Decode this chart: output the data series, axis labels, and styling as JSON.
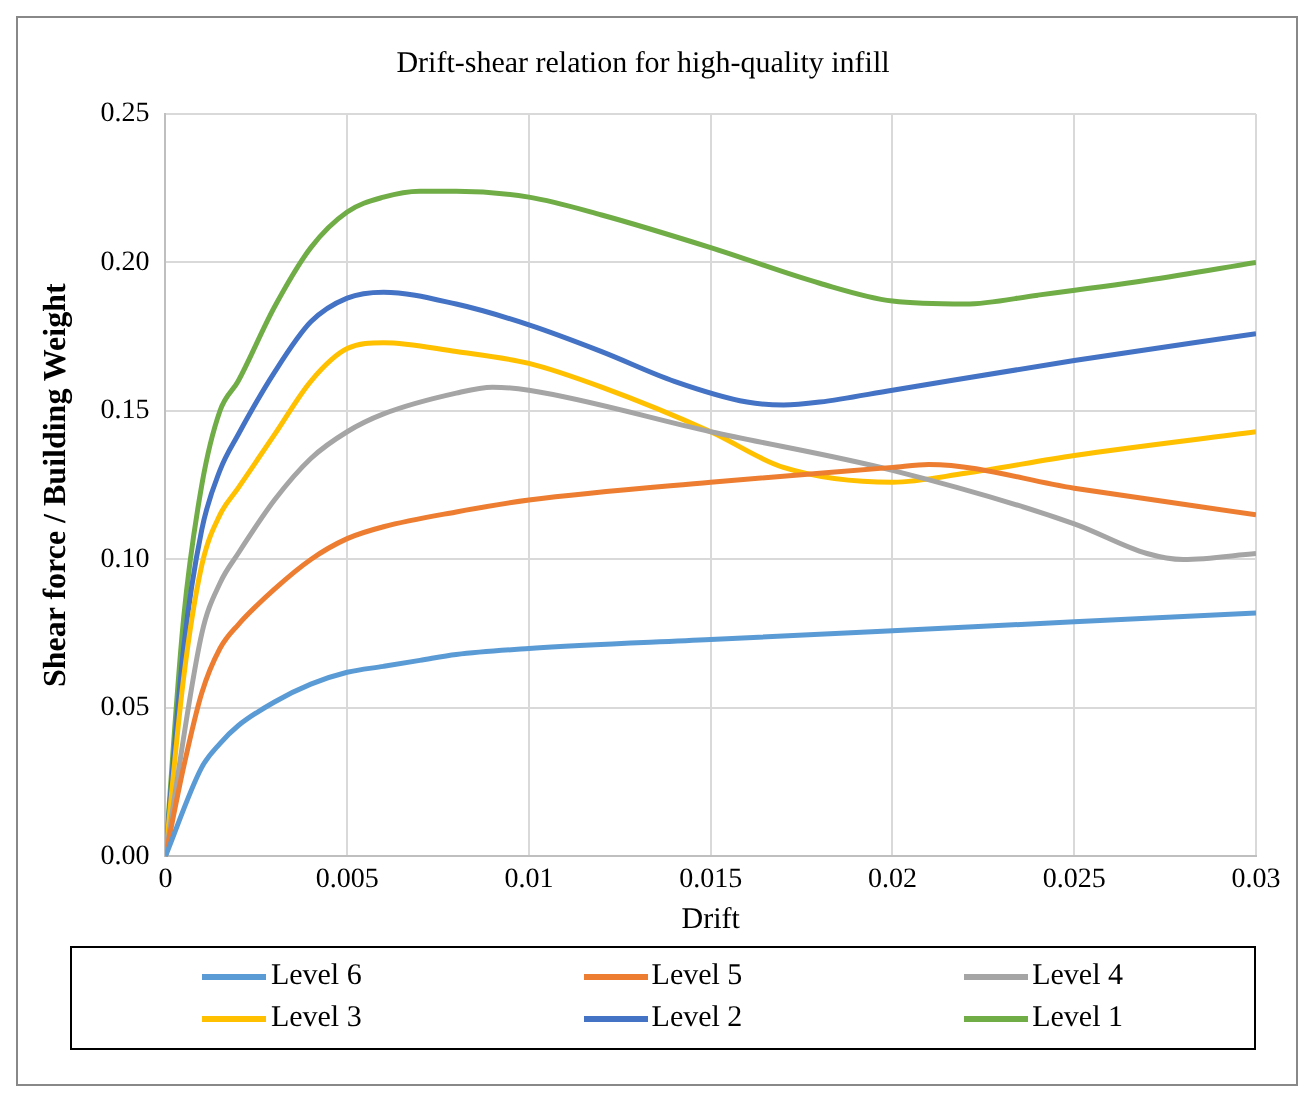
{
  "chart_data": {
    "type": "line",
    "title": "Drift-shear relation for high-quality infill",
    "xlabel": "Drift",
    "ylabel": "Shear force / Building Weight",
    "xlim": [
      0,
      0.03
    ],
    "xticks": [
      0,
      0.005,
      0.01,
      0.015,
      0.02,
      0.025,
      0.03
    ],
    "ylim": [
      0,
      0.25
    ],
    "yticks": [
      {
        "value": 0,
        "label": "0.00"
      },
      {
        "value": 0.05,
        "label": "0.05"
      },
      {
        "value": 0.1,
        "label": "0.10"
      },
      {
        "value": 0.15,
        "label": "0.15"
      },
      {
        "value": 0.2,
        "label": "0.20"
      },
      {
        "value": 0.25,
        "label": "0.25"
      }
    ],
    "grid": true,
    "legend": "bottom",
    "marker": "none",
    "line_style": "solid",
    "series": [
      {
        "name": "Level 6",
        "color": "#5b9bd5",
        "x": [
          0,
          0.001,
          0.0015,
          0.002,
          0.003,
          0.004,
          0.005,
          0.006,
          0.007,
          0.008,
          0.01,
          0.015,
          0.02,
          0.025,
          0.03
        ],
        "values": [
          0,
          0.03,
          0.038,
          0.044,
          0.052,
          0.058,
          0.062,
          0.064,
          0.066,
          0.068,
          0.07,
          0.073,
          0.076,
          0.079,
          0.082
        ]
      },
      {
        "name": "Level 5",
        "color": "#ed7d31",
        "x": [
          0,
          0.0005,
          0.001,
          0.0015,
          0.002,
          0.003,
          0.004,
          0.005,
          0.006,
          0.008,
          0.01,
          0.015,
          0.02,
          0.021,
          0.025,
          0.03
        ],
        "values": [
          0,
          0.03,
          0.055,
          0.07,
          0.078,
          0.09,
          0.1,
          0.107,
          0.111,
          0.116,
          0.12,
          0.126,
          0.131,
          0.132,
          0.124,
          0.115
        ]
      },
      {
        "name": "Level 4",
        "color": "#a5a5a5",
        "x": [
          0,
          0.001,
          0.0015,
          0.002,
          0.003,
          0.004,
          0.005,
          0.006,
          0.008,
          0.009,
          0.01,
          0.015,
          0.02,
          0.025,
          0.027,
          0.028,
          0.03
        ],
        "values": [
          0,
          0.075,
          0.092,
          0.102,
          0.12,
          0.134,
          0.143,
          0.149,
          0.156,
          0.158,
          0.157,
          0.143,
          0.13,
          0.112,
          0.102,
          0.1,
          0.102
        ]
      },
      {
        "name": "Level 3",
        "color": "#ffc000",
        "x": [
          0,
          0.0005,
          0.001,
          0.0015,
          0.002,
          0.003,
          0.004,
          0.005,
          0.006,
          0.008,
          0.01,
          0.012,
          0.015,
          0.017,
          0.02,
          0.022,
          0.025,
          0.03
        ],
        "values": [
          0,
          0.06,
          0.098,
          0.115,
          0.124,
          0.142,
          0.16,
          0.171,
          0.173,
          0.17,
          0.166,
          0.158,
          0.143,
          0.131,
          0.126,
          0.129,
          0.135,
          0.143
        ]
      },
      {
        "name": "Level 2",
        "color": "#4472c4",
        "x": [
          0,
          0.0005,
          0.001,
          0.0015,
          0.002,
          0.003,
          0.004,
          0.005,
          0.006,
          0.008,
          0.01,
          0.012,
          0.014,
          0.016,
          0.017,
          0.018,
          0.02,
          0.025,
          0.03
        ],
        "values": [
          0,
          0.07,
          0.11,
          0.13,
          0.142,
          0.163,
          0.18,
          0.188,
          0.19,
          0.186,
          0.179,
          0.17,
          0.16,
          0.153,
          0.152,
          0.153,
          0.157,
          0.167,
          0.176
        ]
      },
      {
        "name": "Level 1",
        "color": "#70ad47",
        "x": [
          0,
          0.0005,
          0.001,
          0.0015,
          0.002,
          0.003,
          0.004,
          0.005,
          0.006,
          0.007,
          0.008,
          0.01,
          0.012,
          0.015,
          0.018,
          0.02,
          0.022,
          0.024,
          0.027,
          0.03
        ],
        "values": [
          0,
          0.08,
          0.125,
          0.15,
          0.16,
          0.185,
          0.205,
          0.217,
          0.222,
          0.224,
          0.224,
          0.222,
          0.216,
          0.205,
          0.193,
          0.187,
          0.186,
          0.189,
          0.194,
          0.2
        ]
      }
    ]
  }
}
